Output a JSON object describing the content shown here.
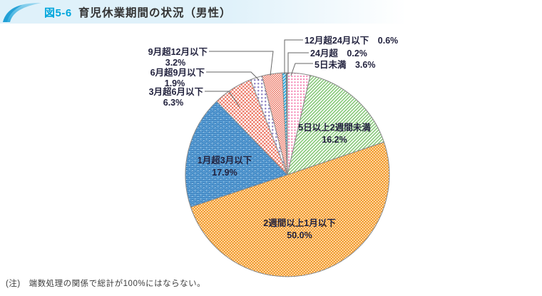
{
  "header": {
    "fig_label": "図5-6",
    "title": "育児休業期間の状況（男性）"
  },
  "note": "(注)　端数処理の関係で総計が100%にはならない。",
  "colors": {
    "banner_bg": "#DFF1FA",
    "fig_label_text": "#00A6DC",
    "title_text": "#333333",
    "label_text": "#23233F",
    "slice_outline": "#8A8A8A",
    "leader_line": "#666666",
    "dark_slice": "#53656F",
    "pink": "#F47FB0",
    "green": "#85C878",
    "orange": "#F5A033",
    "blue_bg": "#5AA2D8",
    "blue_dash": "#3D7DBA",
    "salmon": "#ED7D6B",
    "purple": "#8577BE",
    "red_fine": "#EA6A55",
    "cyan": "#29ABE2"
  },
  "chart_data": {
    "type": "pie",
    "title": "育児休業期間の状況（男性）",
    "unit": "%",
    "direction": "clockwise-from-top",
    "note": "(注)　端数処理の関係で総計が100%にはならない。",
    "slices": [
      {
        "label": "5日未満",
        "value": 3.6,
        "display": "3.6%",
        "pattern": "pink-dots",
        "label_placement": "outside-right"
      },
      {
        "label": "5日以上2週間未満",
        "value": 16.2,
        "display": "16.2%",
        "pattern": "green-diag",
        "label_placement": "inside"
      },
      {
        "label": "2週間以上1月以下",
        "value": 50.0,
        "display": "50.0%",
        "pattern": "orange-check",
        "label_placement": "inside"
      },
      {
        "label": "1月超3月以下",
        "value": 17.9,
        "display": "17.9%",
        "pattern": "blue-weave",
        "label_placement": "inside"
      },
      {
        "label": "3月超6月以下",
        "value": 6.3,
        "display": "6.3%",
        "pattern": "salmon-check",
        "label_placement": "outside-left"
      },
      {
        "label": "6月超9月以下",
        "value": 1.9,
        "display": "1.9%",
        "pattern": "purple-dots",
        "label_placement": "outside-left"
      },
      {
        "label": "9月超12月以下",
        "value": 3.2,
        "display": "3.2%",
        "pattern": "red-fine-check",
        "label_placement": "outside-left"
      },
      {
        "label": "12月超24月以下",
        "value": 0.6,
        "display": "0.6%",
        "pattern": "cyan-diag",
        "label_placement": "outside-right"
      },
      {
        "label": "24月超",
        "value": 0.2,
        "display": "0.2%",
        "pattern": "solid-dark",
        "label_placement": "outside-right"
      }
    ]
  }
}
